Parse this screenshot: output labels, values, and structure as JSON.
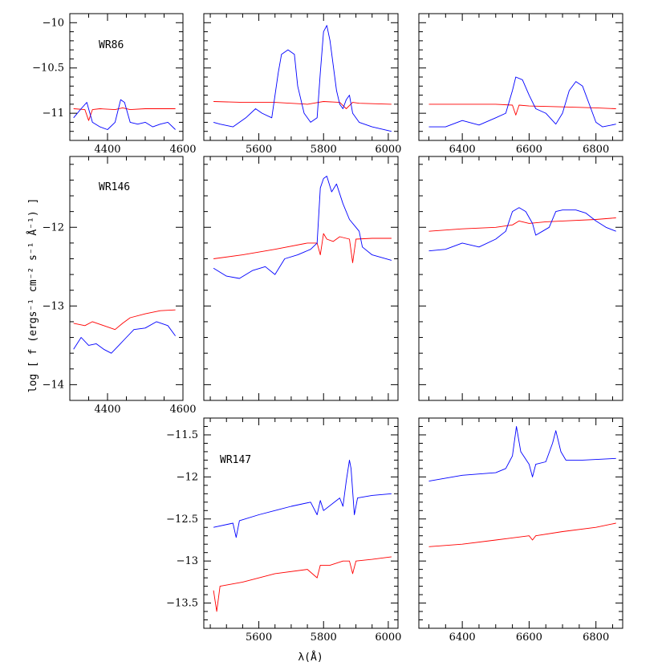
{
  "series_colors": {
    "red": "#ff0000",
    "blue": "#0000ff"
  },
  "ylabel": "log [ f (ergs⁻¹ cm⁻² s⁻¹ Å⁻¹) ]",
  "xlabel": "λ(Å)",
  "rows": [
    {
      "label": "WR86",
      "ylim": [
        -11.3,
        -9.9
      ],
      "yticks": [
        -11,
        -10.5,
        -10
      ],
      "ytick_labels": [
        "−11",
        "−10.5",
        "−10"
      ]
    },
    {
      "label": "WR146",
      "ylim": [
        -14.2,
        -11.1
      ],
      "yticks": [
        -14,
        -13,
        -12
      ],
      "ytick_labels": [
        "−14",
        "−13",
        "−12"
      ]
    },
    {
      "label": "WR147",
      "ylim": [
        -13.8,
        -11.3
      ],
      "yticks": [
        -13.5,
        -13,
        -12.5,
        -12,
        -11.5
      ],
      "ytick_labels": [
        "−13.5",
        "−13",
        "−12.5",
        "−12",
        "−11.5"
      ]
    }
  ],
  "columns": [
    {
      "xlim": [
        4300,
        4600
      ],
      "xticks": [
        4400,
        4600
      ],
      "xtick_labels": [
        "4400",
        "4600"
      ]
    },
    {
      "xlim": [
        5430,
        6030
      ],
      "xticks": [
        5600,
        5800,
        6000
      ],
      "xtick_labels": [
        "5600",
        "5800",
        "6000"
      ]
    },
    {
      "xlim": [
        6270,
        6880
      ],
      "xticks": [
        6400,
        6600,
        6800
      ],
      "xtick_labels": [
        "6400",
        "6600",
        "6800"
      ]
    }
  ],
  "chart_data": {
    "type": "line",
    "title": "",
    "xlabel": "λ(Å)",
    "ylabel": "log [ f (ergs⁻¹ cm⁻² s⁻¹ Å⁻¹) ]",
    "grid": false,
    "panels": [
      {
        "row": 0,
        "col": 0,
        "star": "WR86",
        "xlim": [
          4300,
          4600
        ],
        "ylim": [
          -11.3,
          -9.9
        ],
        "series": [
          {
            "color": "red",
            "x": [
              4310,
              4340,
              4350,
              4360,
              4380,
              4420,
              4440,
              4460,
              4500,
              4540,
              4580
            ],
            "y": [
              -10.95,
              -10.96,
              -11.08,
              -10.96,
              -10.95,
              -10.96,
              -10.94,
              -10.96,
              -10.95,
              -10.95,
              -10.95
            ]
          },
          {
            "color": "blue",
            "x": [
              4310,
              4330,
              4345,
              4360,
              4380,
              4400,
              4420,
              4435,
              4445,
              4460,
              4480,
              4500,
              4520,
              4540,
              4560,
              4580
            ],
            "y": [
              -11.05,
              -10.95,
              -10.88,
              -11.1,
              -11.15,
              -11.18,
              -11.1,
              -10.85,
              -10.88,
              -11.1,
              -11.12,
              -11.1,
              -11.15,
              -11.12,
              -11.1,
              -11.18
            ]
          }
        ]
      },
      {
        "row": 0,
        "col": 1,
        "star": "WR86",
        "xlim": [
          5430,
          6030
        ],
        "ylim": [
          -11.3,
          -9.9
        ],
        "series": [
          {
            "color": "red",
            "x": [
              5460,
              5550,
              5650,
              5750,
              5800,
              5850,
              5870,
              5890,
              5910,
              6010
            ],
            "y": [
              -10.87,
              -10.88,
              -10.88,
              -10.9,
              -10.87,
              -10.88,
              -10.95,
              -10.88,
              -10.89,
              -10.9
            ]
          },
          {
            "color": "blue",
            "x": [
              5460,
              5480,
              5520,
              5560,
              5590,
              5610,
              5640,
              5660,
              5670,
              5690,
              5710,
              5720,
              5740,
              5760,
              5780,
              5790,
              5800,
              5810,
              5820,
              5840,
              5850,
              5860,
              5870,
              5880,
              5890,
              5910,
              5950,
              6010
            ],
            "y": [
              -11.1,
              -11.12,
              -11.15,
              -11.05,
              -10.95,
              -11.0,
              -11.05,
              -10.55,
              -10.35,
              -10.3,
              -10.35,
              -10.7,
              -11.0,
              -11.1,
              -11.05,
              -10.55,
              -10.1,
              -10.03,
              -10.2,
              -10.75,
              -10.9,
              -10.95,
              -10.85,
              -10.8,
              -11.0,
              -11.1,
              -11.15,
              -11.2
            ]
          }
        ]
      },
      {
        "row": 0,
        "col": 2,
        "star": "WR86",
        "xlim": [
          6270,
          6880
        ],
        "ylim": [
          -11.3,
          -9.9
        ],
        "series": [
          {
            "color": "red",
            "x": [
              6300,
              6400,
              6500,
              6550,
              6560,
              6570,
              6600,
              6700,
              6800,
              6860
            ],
            "y": [
              -10.9,
              -10.9,
              -10.9,
              -10.91,
              -11.02,
              -10.91,
              -10.92,
              -10.93,
              -10.94,
              -10.95
            ]
          },
          {
            "color": "blue",
            "x": [
              6300,
              6350,
              6400,
              6450,
              6500,
              6530,
              6550,
              6560,
              6580,
              6600,
              6620,
              6650,
              6680,
              6700,
              6720,
              6740,
              6760,
              6780,
              6800,
              6820,
              6860
            ],
            "y": [
              -11.15,
              -11.15,
              -11.08,
              -11.13,
              -11.05,
              -11.0,
              -10.75,
              -10.6,
              -10.63,
              -10.8,
              -10.95,
              -11.0,
              -11.12,
              -11.0,
              -10.75,
              -10.65,
              -10.7,
              -10.9,
              -11.1,
              -11.15,
              -11.12
            ]
          }
        ]
      },
      {
        "row": 1,
        "col": 0,
        "star": "WR146",
        "xlim": [
          4300,
          4600
        ],
        "ylim": [
          -14.2,
          -11.1
        ],
        "series": [
          {
            "color": "red",
            "x": [
              4310,
              4340,
              4360,
              4390,
              4420,
              4440,
              4460,
              4500,
              4540,
              4580
            ],
            "y": [
              -13.22,
              -13.25,
              -13.2,
              -13.25,
              -13.3,
              -13.22,
              -13.15,
              -13.1,
              -13.06,
              -13.05
            ]
          },
          {
            "color": "blue",
            "x": [
              4310,
              4330,
              4350,
              4370,
              4390,
              4410,
              4430,
              4450,
              4470,
              4500,
              4530,
              4560,
              4580
            ],
            "y": [
              -13.55,
              -13.4,
              -13.5,
              -13.48,
              -13.55,
              -13.6,
              -13.5,
              -13.4,
              -13.3,
              -13.28,
              -13.2,
              -13.25,
              -13.38
            ]
          }
        ]
      },
      {
        "row": 1,
        "col": 1,
        "star": "WR146",
        "xlim": [
          5430,
          6030
        ],
        "ylim": [
          -14.2,
          -11.1
        ],
        "series": [
          {
            "color": "red",
            "x": [
              5460,
              5550,
              5650,
              5750,
              5780,
              5790,
              5800,
              5810,
              5830,
              5850,
              5880,
              5890,
              5900,
              5950,
              6010
            ],
            "y": [
              -12.4,
              -12.35,
              -12.28,
              -12.2,
              -12.2,
              -12.35,
              -12.08,
              -12.15,
              -12.18,
              -12.12,
              -12.15,
              -12.45,
              -12.15,
              -12.14,
              -12.14
            ]
          },
          {
            "color": "blue",
            "x": [
              5460,
              5500,
              5540,
              5580,
              5620,
              5650,
              5680,
              5720,
              5760,
              5780,
              5790,
              5800,
              5810,
              5825,
              5840,
              5860,
              5880,
              5900,
              5910,
              5920,
              5950,
              6010
            ],
            "y": [
              -12.52,
              -12.62,
              -12.65,
              -12.55,
              -12.5,
              -12.6,
              -12.4,
              -12.35,
              -12.28,
              -12.2,
              -11.5,
              -11.38,
              -11.35,
              -11.55,
              -11.45,
              -11.7,
              -11.9,
              -12.0,
              -12.05,
              -12.25,
              -12.35,
              -12.42
            ]
          }
        ]
      },
      {
        "row": 1,
        "col": 2,
        "star": "WR146",
        "xlim": [
          6270,
          6880
        ],
        "ylim": [
          -14.2,
          -11.1
        ],
        "series": [
          {
            "color": "red",
            "x": [
              6300,
              6400,
              6500,
              6550,
              6570,
              6600,
              6650,
              6700,
              6800,
              6860
            ],
            "y": [
              -12.05,
              -12.02,
              -12.0,
              -11.97,
              -11.92,
              -11.95,
              -11.93,
              -11.92,
              -11.9,
              -11.88
            ]
          },
          {
            "color": "blue",
            "x": [
              6300,
              6350,
              6400,
              6450,
              6500,
              6530,
              6550,
              6570,
              6590,
              6610,
              6620,
              6640,
              6660,
              6680,
              6700,
              6740,
              6770,
              6800,
              6830,
              6860
            ],
            "y": [
              -12.3,
              -12.28,
              -12.2,
              -12.25,
              -12.15,
              -12.05,
              -11.8,
              -11.75,
              -11.8,
              -11.95,
              -12.1,
              -12.05,
              -12.0,
              -11.8,
              -11.78,
              -11.78,
              -11.82,
              -11.92,
              -12.0,
              -12.05
            ]
          }
        ]
      },
      {
        "row": 2,
        "col": 1,
        "star": "WR147",
        "xlim": [
          5430,
          6030
        ],
        "ylim": [
          -13.8,
          -11.3
        ],
        "series": [
          {
            "color": "red",
            "x": [
              5460,
              5470,
              5480,
              5550,
              5650,
              5750,
              5780,
              5790,
              5820,
              5860,
              5880,
              5890,
              5900,
              5950,
              6010
            ],
            "y": [
              -13.35,
              -13.6,
              -13.3,
              -13.25,
              -13.15,
              -13.1,
              -13.2,
              -13.05,
              -13.05,
              -13.0,
              -13.0,
              -13.15,
              -13.0,
              -12.98,
              -12.95
            ]
          },
          {
            "color": "blue",
            "x": [
              5460,
              5520,
              5530,
              5540,
              5600,
              5700,
              5760,
              5780,
              5790,
              5800,
              5850,
              5860,
              5870,
              5880,
              5885,
              5895,
              5905,
              5950,
              6010
            ],
            "y": [
              -12.6,
              -12.55,
              -12.72,
              -12.52,
              -12.45,
              -12.35,
              -12.3,
              -12.45,
              -12.28,
              -12.4,
              -12.25,
              -12.35,
              -12.05,
              -11.8,
              -11.9,
              -12.45,
              -12.25,
              -12.22,
              -12.2
            ]
          }
        ]
      },
      {
        "row": 2,
        "col": 2,
        "star": "WR147",
        "xlim": [
          6270,
          6880
        ],
        "ylim": [
          -13.8,
          -11.3
        ],
        "series": [
          {
            "color": "red",
            "x": [
              6300,
              6400,
              6500,
              6600,
              6610,
              6620,
              6700,
              6800,
              6860
            ],
            "y": [
              -12.83,
              -12.8,
              -12.75,
              -12.7,
              -12.75,
              -12.7,
              -12.65,
              -12.6,
              -12.55
            ]
          },
          {
            "color": "blue",
            "x": [
              6300,
              6400,
              6500,
              6530,
              6550,
              6562,
              6575,
              6600,
              6610,
              6620,
              6650,
              6670,
              6680,
              6695,
              6710,
              6760,
              6860
            ],
            "y": [
              -12.05,
              -11.98,
              -11.95,
              -11.9,
              -11.75,
              -11.4,
              -11.7,
              -11.85,
              -12.0,
              -11.85,
              -11.82,
              -11.6,
              -11.45,
              -11.7,
              -11.8,
              -11.8,
              -11.78
            ]
          }
        ]
      }
    ]
  }
}
